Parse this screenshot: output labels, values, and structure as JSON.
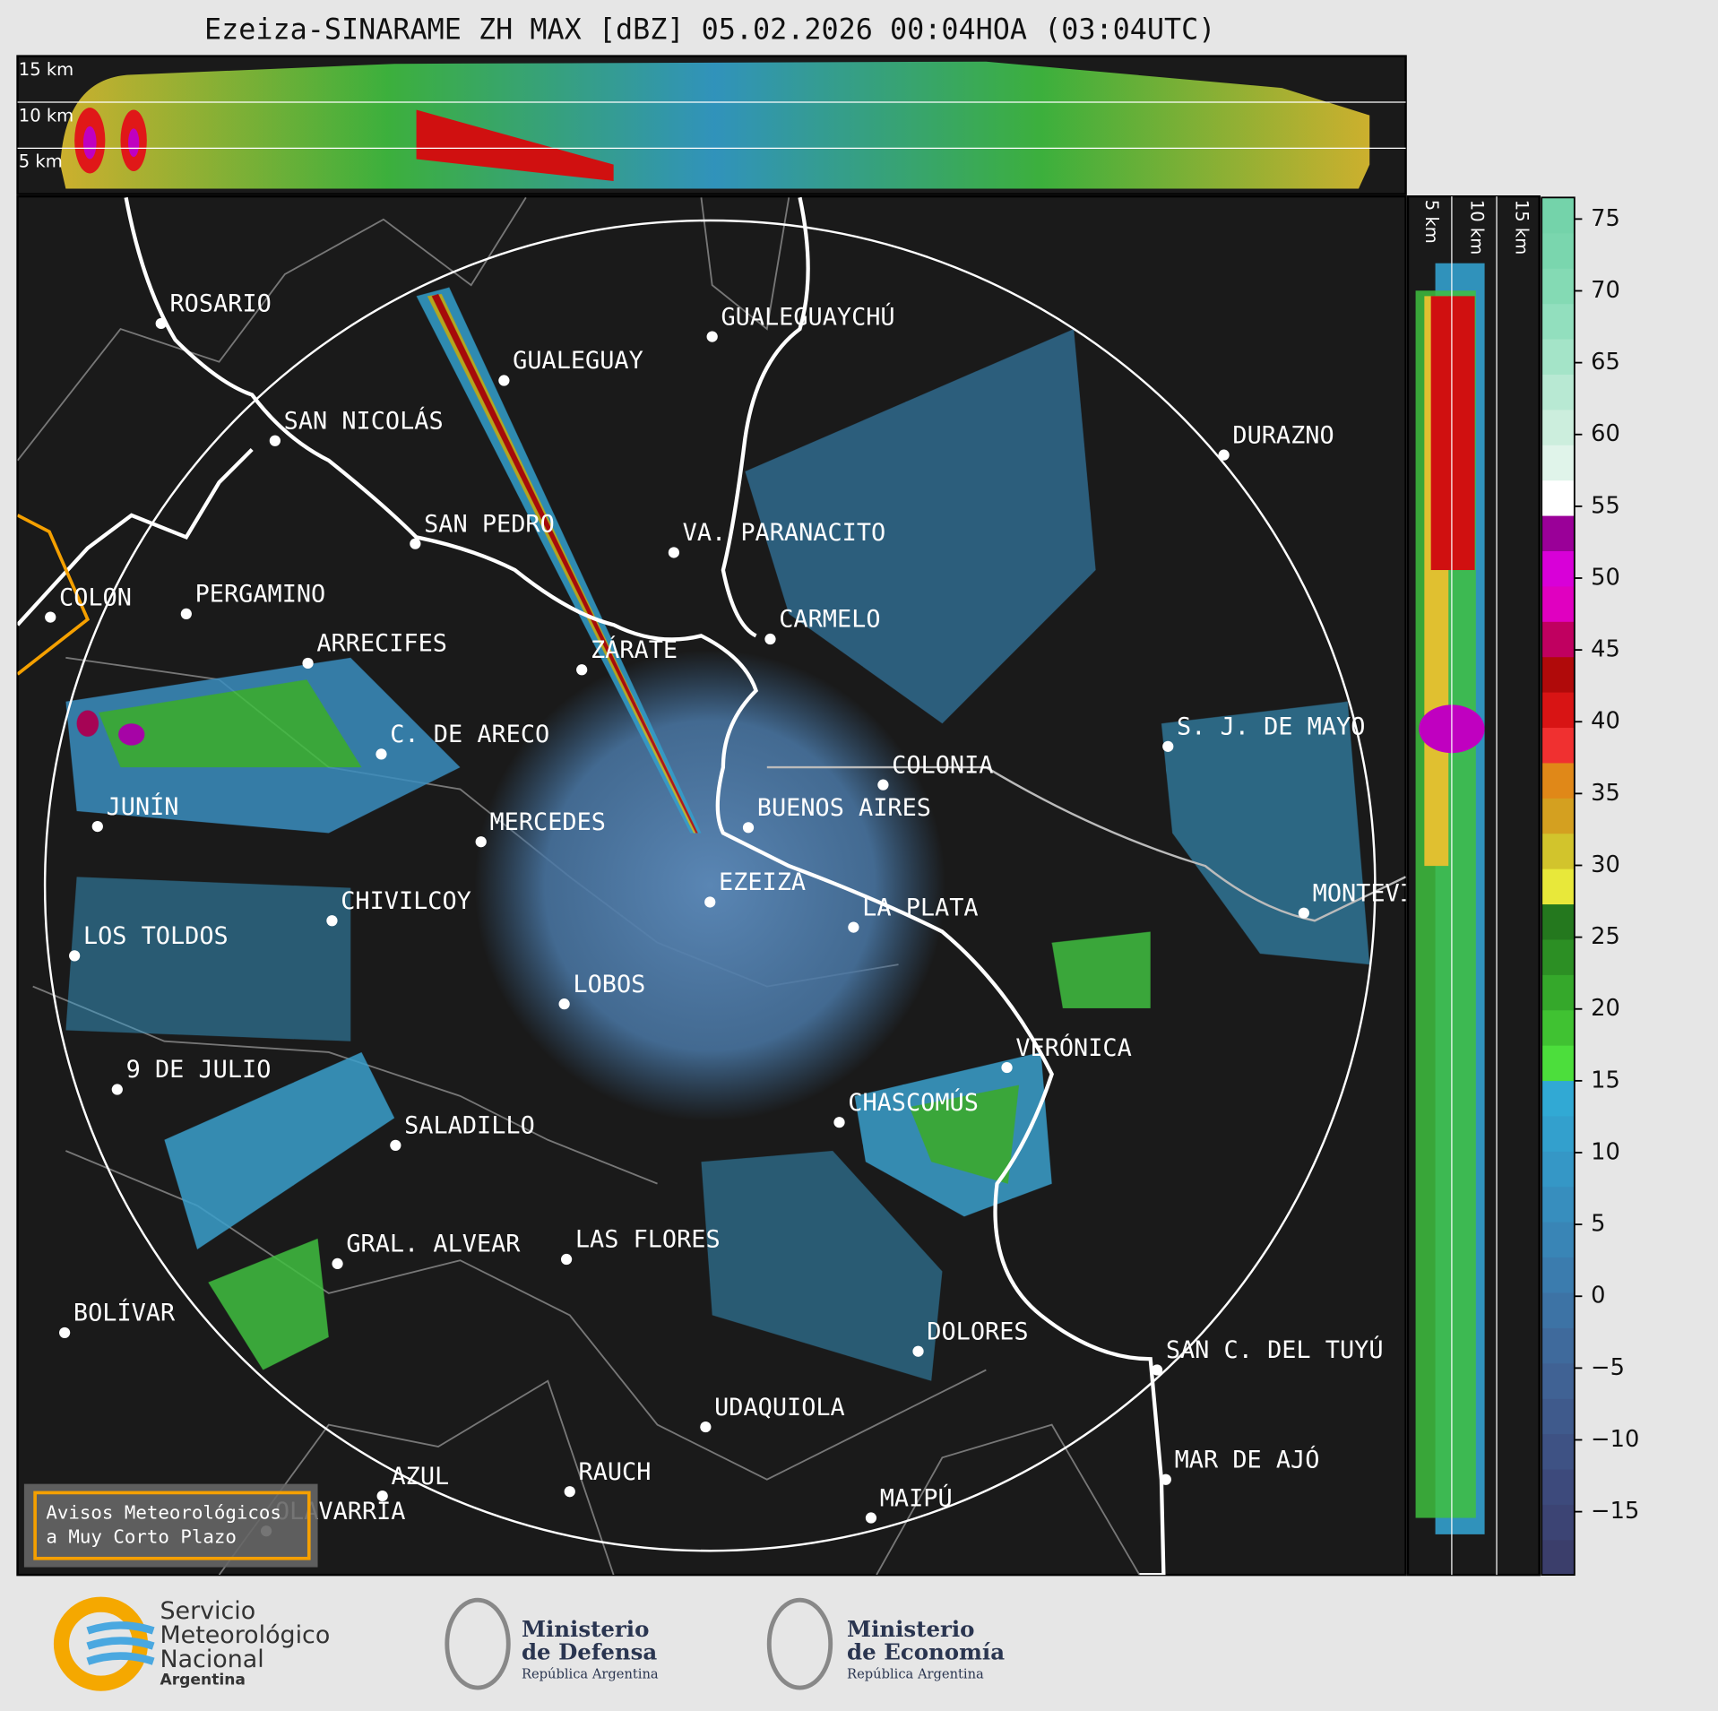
{
  "title": "Ezeiza-SINARAME ZH MAX [dBZ] 05.02.2026 00:04HOA (03:04UTC)",
  "top_panel": {
    "labels": [
      "15 km",
      "10 km",
      "5 km"
    ]
  },
  "side_panel": {
    "labels": [
      "5 km",
      "10 km",
      "15 km"
    ]
  },
  "map": {
    "cities": [
      "ROSARIO",
      "GUALEGUAYCHÚ",
      "GUALEGUAY",
      "SAN NICOLÁS",
      "DURAZNO",
      "SAN PEDRO",
      "VA. PARANACITO",
      "COLON",
      "PERGAMINO",
      "CARMELO",
      "ARRECIFES",
      "ZÁRATE",
      "S. J. DE MAYO",
      "C. DE ARECO",
      "COLONIA",
      "BUENOS AIRES",
      "JUNÍN",
      "MERCEDES",
      "EZEIZA",
      "MONTEVIDEO",
      "CHIVILCOY",
      "LA PLATA",
      "LOS TOLDOS",
      "LOBOS",
      "VERÓNICA",
      "9 DE JULIO",
      "CHASCOMÚS",
      "SALADILLO",
      "GRAL. ALVEAR",
      "LAS FLORES",
      "BOLÍVAR",
      "DOLORES",
      "SAN C. DEL TUYÚ",
      "UDAQUIOLA",
      "MAR DE AJÓ",
      "AZUL",
      "RAUCH",
      "OLAVARRÍA",
      "MAIPÚ"
    ]
  },
  "colorbar": {
    "lim": [
      -19.4,
      76.5
    ],
    "ticks": [
      {
        "value": -15,
        "label": "−15"
      },
      {
        "value": -10,
        "label": "−10"
      },
      {
        "value": -5,
        "label": "−5"
      },
      0,
      5,
      10,
      15,
      20,
      25,
      30,
      35,
      40,
      45,
      50,
      55,
      60,
      65,
      70,
      75
    ],
    "colors": [
      "#3b3e6b",
      "#3c4474",
      "#3d4a7c",
      "#3e5284",
      "#3f5a8c",
      "#406294",
      "#3f6a9c",
      "#3d73a5",
      "#3b7cae",
      "#3985b6",
      "#378ebe",
      "#3597c6",
      "#33a0cd",
      "#31a9d4",
      "#4cde3c",
      "#40c232",
      "#35a82b",
      "#2c8f24",
      "#24781e",
      "#e8e83a",
      "#d2c42c",
      "#d4a020",
      "#e08818",
      "#f03030",
      "#d81414",
      "#b00a0a",
      "#c00060",
      "#e000c0",
      "#d800d8",
      "#9a0098",
      "#ffffff",
      "#e0f4ea",
      "#cceedd",
      "#b8e9d3",
      "#a4e4c8",
      "#92dfbe",
      "#84dab4",
      "#7ad6ae",
      "#74d3aa"
    ]
  },
  "warning_box": {
    "lines": [
      "Avisos Meteorológicos",
      "a Muy Corto Plazo"
    ]
  },
  "footer": {
    "smn": [
      "Servicio",
      "Meteorológico",
      "Nacional",
      "Argentina"
    ],
    "defensa": [
      "Ministerio",
      "de Defensa",
      "República Argentina"
    ],
    "economia": [
      "Ministerio",
      "de Economía",
      "República Argentina"
    ]
  }
}
